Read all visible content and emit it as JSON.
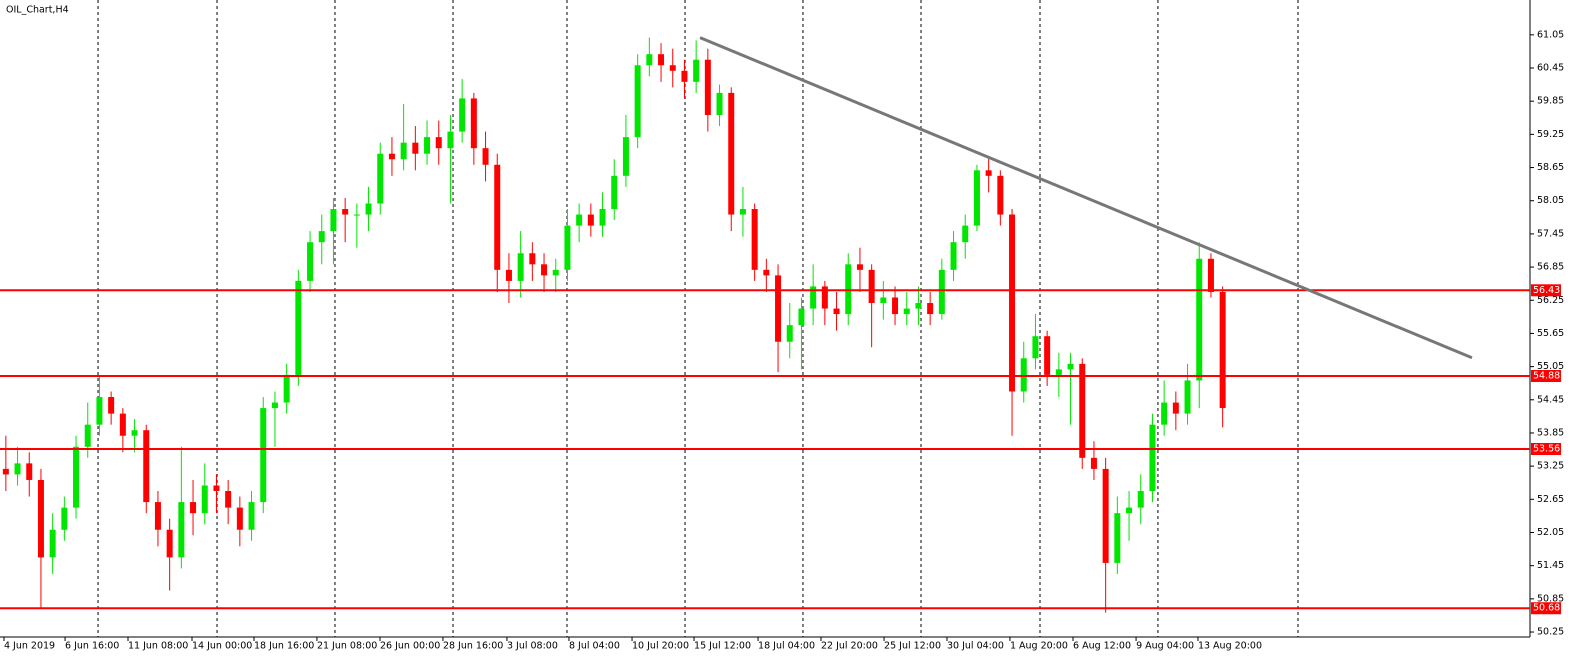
{
  "chart_data": {
    "type": "candlestick",
    "title": "OIL_Chart,H4",
    "xlim": [
      -0.5,
      130.27
    ],
    "ylim": [
      50.16,
      61.68
    ],
    "yticks": [
      61.05,
      60.45,
      59.85,
      59.25,
      58.65,
      58.05,
      57.45,
      56.85,
      56.25,
      55.65,
      55.05,
      54.45,
      53.85,
      53.25,
      52.65,
      52.05,
      51.45,
      50.85,
      50.25
    ],
    "xticks": [
      {
        "value": -0.16,
        "label": "4 Jun 2019"
      },
      {
        "value": 5.06,
        "label": "6 Jun 16:00"
      },
      {
        "value": 10.44,
        "label": "11 Jun 08:00"
      },
      {
        "value": 15.91,
        "label": "14 Jun 00:00"
      },
      {
        "value": 21.21,
        "label": "18 Jun 16:00"
      },
      {
        "value": 26.59,
        "label": "21 Jun 08:00"
      },
      {
        "value": 31.98,
        "label": "26 Jun 00:00"
      },
      {
        "value": 37.36,
        "label": "28 Jun 16:00"
      },
      {
        "value": 42.83,
        "label": "3 Jul 08:00"
      },
      {
        "value": 48.13,
        "label": "8 Jul 04:00"
      },
      {
        "value": 53.52,
        "label": "10 Jul 20:00"
      },
      {
        "value": 58.82,
        "label": "15 Jul 12:00"
      },
      {
        "value": 64.29,
        "label": "18 Jul 04:00"
      },
      {
        "value": 69.67,
        "label": "22 Jul 20:00"
      },
      {
        "value": 75.06,
        "label": "25 Jul 12:00"
      },
      {
        "value": 80.44,
        "label": "30 Jul 04:00"
      },
      {
        "value": 85.82,
        "label": "1 Aug 20:00"
      },
      {
        "value": 91.21,
        "label": "6 Aug 12:00"
      },
      {
        "value": 96.6,
        "label": "9 Aug 04:00"
      },
      {
        "value": 101.89,
        "label": "13 Aug 20:00"
      }
    ],
    "xgrid": [
      7.88,
      18.05,
      28.13,
      38.22,
      47.96,
      58.05,
      68.13,
      78.22,
      88.39,
      98.47,
      110.44
    ],
    "up_color": "#00e600",
    "down_color": "#ff0000",
    "open": [
      53.2,
      53.1,
      53.3,
      53.0,
      51.6,
      52.1,
      52.5,
      53.6,
      54.0,
      54.5,
      54.2,
      53.8,
      53.9,
      52.6,
      52.1,
      51.6,
      52.6,
      52.4,
      52.9,
      52.8,
      52.5,
      52.1,
      52.6,
      54.3,
      54.4,
      54.9,
      56.6,
      57.3,
      57.5,
      57.9,
      57.8,
      57.8,
      58.0,
      58.9,
      58.8,
      59.1,
      58.9,
      59.2,
      59.0,
      59.3,
      59.9,
      59.0,
      58.7,
      56.8,
      56.6,
      57.1,
      56.9,
      56.7,
      56.8,
      57.6,
      57.8,
      57.6,
      57.9,
      58.5,
      59.2,
      60.5,
      60.7,
      60.5,
      60.4,
      60.2,
      60.6,
      59.6,
      60.0,
      57.8,
      57.9,
      56.8,
      56.7,
      55.5,
      55.8,
      56.1,
      56.5,
      56.1,
      56.0,
      56.9,
      56.8,
      56.2,
      56.3,
      56.0,
      56.1,
      56.2,
      56.0,
      56.8,
      57.3,
      57.6,
      58.6,
      58.5,
      57.8,
      54.6,
      55.2,
      55.6,
      54.9,
      55.0,
      55.1,
      53.4,
      53.2,
      51.5,
      52.4,
      52.5,
      52.8,
      54.0,
      54.4,
      54.2,
      54.8,
      57.0,
      56.4
    ],
    "high": [
      53.8,
      53.6,
      53.5,
      53.2,
      52.4,
      52.7,
      53.8,
      54.4,
      54.88,
      54.6,
      54.3,
      54.1,
      54.0,
      52.8,
      52.3,
      53.6,
      53.0,
      53.3,
      53.1,
      53.0,
      52.7,
      52.8,
      54.5,
      54.6,
      55.1,
      56.8,
      57.5,
      57.8,
      58.1,
      58.1,
      58.0,
      58.3,
      59.1,
      59.2,
      59.8,
      59.4,
      59.5,
      59.5,
      59.6,
      60.25,
      60.0,
      59.3,
      58.9,
      57.1,
      57.5,
      57.3,
      57.1,
      57.0,
      57.9,
      58.0,
      58.0,
      58.2,
      58.8,
      59.6,
      60.7,
      61.0,
      60.9,
      60.8,
      60.6,
      60.95,
      60.8,
      60.15,
      60.1,
      58.3,
      58.0,
      57.0,
      56.9,
      56.2,
      56.3,
      56.9,
      56.6,
      56.4,
      57.1,
      57.2,
      56.9,
      56.6,
      56.5,
      56.4,
      56.5,
      56.4,
      57.0,
      57.5,
      57.8,
      58.7,
      58.85,
      58.6,
      57.9,
      55.5,
      56.0,
      55.7,
      55.3,
      55.3,
      55.2,
      53.7,
      53.4,
      52.7,
      52.8,
      53.1,
      54.2,
      54.8,
      54.6,
      55.1,
      57.3,
      57.1,
      56.5
    ],
    "low": [
      52.8,
      52.9,
      52.7,
      50.68,
      51.3,
      51.9,
      52.3,
      53.4,
      53.8,
      54.0,
      53.5,
      53.5,
      52.4,
      51.8,
      51.0,
      51.4,
      52.0,
      52.2,
      52.4,
      52.2,
      51.8,
      51.9,
      52.4,
      53.6,
      54.2,
      54.7,
      56.4,
      56.9,
      56.9,
      57.3,
      57.2,
      57.5,
      57.8,
      58.5,
      58.6,
      58.6,
      58.7,
      58.7,
      58.0,
      59.1,
      58.7,
      58.4,
      56.4,
      56.2,
      56.3,
      56.6,
      56.4,
      56.4,
      56.6,
      57.3,
      57.4,
      57.4,
      57.7,
      58.3,
      59.0,
      60.3,
      60.2,
      60.1,
      59.9,
      60.0,
      59.3,
      59.4,
      57.5,
      57.4,
      56.6,
      56.4,
      54.95,
      55.2,
      55.0,
      55.8,
      55.8,
      55.7,
      55.8,
      56.4,
      55.4,
      55.9,
      55.8,
      55.8,
      55.8,
      55.8,
      55.9,
      56.6,
      57.0,
      57.5,
      58.2,
      57.6,
      53.8,
      54.4,
      55.0,
      54.7,
      54.5,
      54.0,
      53.2,
      53.0,
      50.6,
      51.3,
      51.9,
      52.2,
      52.6,
      53.8,
      53.9,
      54.0,
      54.3,
      56.3,
      53.95
    ],
    "close": [
      53.1,
      53.3,
      53.0,
      51.6,
      52.1,
      52.5,
      53.6,
      54.0,
      54.5,
      54.2,
      53.8,
      53.9,
      52.6,
      52.1,
      51.6,
      52.6,
      52.4,
      52.9,
      52.8,
      52.5,
      52.1,
      52.6,
      54.3,
      54.4,
      54.9,
      56.6,
      57.3,
      57.5,
      57.9,
      57.8,
      57.8,
      58.0,
      58.9,
      58.8,
      59.1,
      58.9,
      59.2,
      59.0,
      59.3,
      59.9,
      59.0,
      58.7,
      56.8,
      56.6,
      57.1,
      56.9,
      56.7,
      56.8,
      57.6,
      57.8,
      57.6,
      57.9,
      58.5,
      59.2,
      60.5,
      60.7,
      60.5,
      60.4,
      60.2,
      60.6,
      59.6,
      60.0,
      57.8,
      57.9,
      56.8,
      56.7,
      55.5,
      55.8,
      56.1,
      56.5,
      56.1,
      56.0,
      56.9,
      56.8,
      56.2,
      56.3,
      56.0,
      56.1,
      56.2,
      56.0,
      56.8,
      57.3,
      57.6,
      58.6,
      58.5,
      57.8,
      54.6,
      55.2,
      55.6,
      54.9,
      55.0,
      55.1,
      53.4,
      53.2,
      51.5,
      52.4,
      52.5,
      52.8,
      54.0,
      54.4,
      54.2,
      54.8,
      57.0,
      56.4,
      54.3
    ],
    "levels": [
      56.43,
      54.88,
      53.56,
      50.68
    ],
    "level_color": "#ff0000",
    "trendline": {
      "x": [
        59.33,
        125.31
      ],
      "y": [
        61.0,
        55.21
      ],
      "color": "#777777"
    }
  }
}
